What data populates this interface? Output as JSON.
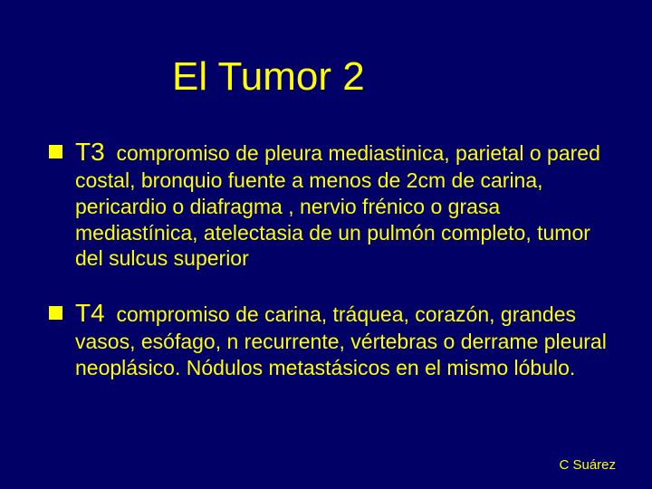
{
  "slide": {
    "background_color": "#000066",
    "text_color": "#ffff00",
    "bullet_color": "#ffff00",
    "title": "El Tumor 2",
    "title_fontsize": 44,
    "body_fontsize": 23,
    "lead_fontsize": 28,
    "bullets": [
      {
        "lead": "T3",
        "text": "compromiso de pleura mediastinica, parietal o pared costal, bronquio fuente a menos de 2cm de carina, pericardio o diafragma , nervio frénico o grasa mediastínica, atelectasia de un pulmón completo, tumor del sulcus superior"
      },
      {
        "lead": "T4",
        "text": "compromiso de carina, tráquea, corazón, grandes vasos, esófago, n recurrente, vértebras o derrame pleural neoplásico. Nódulos metastásicos en el mismo lóbulo."
      }
    ],
    "footer": "C Suárez",
    "footer_fontsize": 15
  }
}
